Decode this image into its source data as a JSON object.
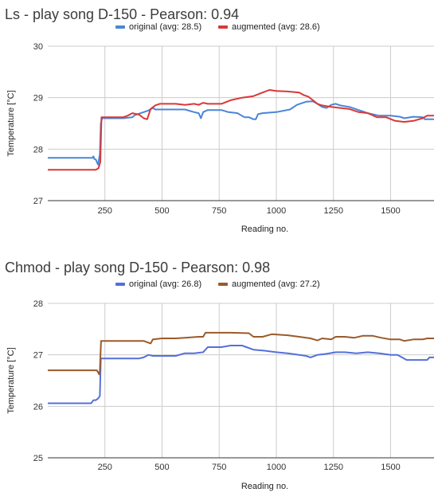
{
  "chart_data": [
    {
      "type": "line",
      "title": "Ls - play song D-150 - Pearson: 0.94",
      "xlabel": "Reading no.",
      "ylabel": "Temperature [°C]",
      "xlim": [
        0,
        1690
      ],
      "ylim": [
        27,
        30
      ],
      "xticks": [
        250,
        500,
        750,
        1000,
        1250,
        1500
      ],
      "yticks": [
        27,
        28,
        29,
        30
      ],
      "grid": true,
      "legend_position": "top",
      "series": [
        {
          "name": "original (avg: 28.5)",
          "color": "#4a86d6",
          "points": [
            [
              0,
              27.83
            ],
            [
              195,
              27.83
            ],
            [
              200,
              27.86
            ],
            [
              203,
              27.81
            ],
            [
              210,
              27.8
            ],
            [
              220,
              27.7
            ],
            [
              228,
              27.9
            ],
            [
              232,
              28.5
            ],
            [
              238,
              28.6
            ],
            [
              330,
              28.6
            ],
            [
              370,
              28.62
            ],
            [
              380,
              28.66
            ],
            [
              420,
              28.72
            ],
            [
              440,
              28.75
            ],
            [
              460,
              28.8
            ],
            [
              470,
              28.77
            ],
            [
              600,
              28.77
            ],
            [
              640,
              28.72
            ],
            [
              660,
              28.7
            ],
            [
              670,
              28.6
            ],
            [
              680,
              28.72
            ],
            [
              700,
              28.76
            ],
            [
              760,
              28.76
            ],
            [
              790,
              28.72
            ],
            [
              830,
              28.7
            ],
            [
              860,
              28.62
            ],
            [
              880,
              28.62
            ],
            [
              900,
              28.58
            ],
            [
              910,
              28.58
            ],
            [
              920,
              28.68
            ],
            [
              940,
              28.7
            ],
            [
              1000,
              28.72
            ],
            [
              1060,
              28.77
            ],
            [
              1090,
              28.86
            ],
            [
              1130,
              28.92
            ],
            [
              1160,
              28.93
            ],
            [
              1180,
              28.88
            ],
            [
              1200,
              28.82
            ],
            [
              1220,
              28.8
            ],
            [
              1240,
              28.86
            ],
            [
              1260,
              28.88
            ],
            [
              1280,
              28.85
            ],
            [
              1320,
              28.82
            ],
            [
              1360,
              28.76
            ],
            [
              1400,
              28.7
            ],
            [
              1450,
              28.65
            ],
            [
              1500,
              28.65
            ],
            [
              1540,
              28.63
            ],
            [
              1560,
              28.6
            ],
            [
              1600,
              28.63
            ],
            [
              1640,
              28.62
            ],
            [
              1650,
              28.58
            ],
            [
              1690,
              28.58
            ]
          ]
        },
        {
          "name": "augmented (avg: 28.6)",
          "color": "#d93838",
          "points": [
            [
              0,
              27.6
            ],
            [
              210,
              27.6
            ],
            [
              222,
              27.63
            ],
            [
              230,
              27.75
            ],
            [
              235,
              28.62
            ],
            [
              330,
              28.62
            ],
            [
              350,
              28.65
            ],
            [
              370,
              28.7
            ],
            [
              400,
              28.67
            ],
            [
              420,
              28.6
            ],
            [
              435,
              28.58
            ],
            [
              440,
              28.65
            ],
            [
              450,
              28.78
            ],
            [
              470,
              28.85
            ],
            [
              490,
              28.88
            ],
            [
              560,
              28.88
            ],
            [
              600,
              28.86
            ],
            [
              640,
              28.88
            ],
            [
              660,
              28.86
            ],
            [
              680,
              28.9
            ],
            [
              700,
              28.88
            ],
            [
              760,
              28.88
            ],
            [
              800,
              28.95
            ],
            [
              850,
              29.0
            ],
            [
              900,
              29.03
            ],
            [
              940,
              29.1
            ],
            [
              970,
              29.15
            ],
            [
              1000,
              29.13
            ],
            [
              1050,
              29.12
            ],
            [
              1100,
              29.1
            ],
            [
              1120,
              29.05
            ],
            [
              1140,
              29.02
            ],
            [
              1160,
              28.95
            ],
            [
              1180,
              28.88
            ],
            [
              1200,
              28.85
            ],
            [
              1240,
              28.82
            ],
            [
              1280,
              28.8
            ],
            [
              1320,
              28.78
            ],
            [
              1360,
              28.72
            ],
            [
              1400,
              28.7
            ],
            [
              1440,
              28.62
            ],
            [
              1480,
              28.62
            ],
            [
              1520,
              28.55
            ],
            [
              1560,
              28.53
            ],
            [
              1600,
              28.55
            ],
            [
              1640,
              28.6
            ],
            [
              1660,
              28.65
            ],
            [
              1690,
              28.65
            ]
          ]
        }
      ]
    },
    {
      "type": "line",
      "title": "Chmod - play song D-150 - Pearson: 0.98",
      "xlabel": "Reading no.",
      "ylabel": "Temperature [°C]",
      "xlim": [
        0,
        1690
      ],
      "ylim": [
        25,
        28
      ],
      "xticks": [
        250,
        500,
        750,
        1000,
        1250,
        1500
      ],
      "yticks": [
        25,
        26,
        27,
        28
      ],
      "grid": true,
      "legend_position": "top",
      "series": [
        {
          "name": "original (avg: 26.8)",
          "color": "#5470d8",
          "points": [
            [
              0,
              26.06
            ],
            [
              190,
              26.06
            ],
            [
              200,
              26.12
            ],
            [
              210,
              26.12
            ],
            [
              220,
              26.15
            ],
            [
              228,
              26.2
            ],
            [
              232,
              26.93
            ],
            [
              400,
              26.93
            ],
            [
              420,
              26.95
            ],
            [
              440,
              27.0
            ],
            [
              460,
              26.98
            ],
            [
              500,
              26.98
            ],
            [
              560,
              26.98
            ],
            [
              600,
              27.03
            ],
            [
              640,
              27.03
            ],
            [
              680,
              27.05
            ],
            [
              700,
              27.15
            ],
            [
              760,
              27.15
            ],
            [
              800,
              27.18
            ],
            [
              850,
              27.18
            ],
            [
              900,
              27.1
            ],
            [
              950,
              27.08
            ],
            [
              1000,
              27.05
            ],
            [
              1050,
              27.03
            ],
            [
              1100,
              27.0
            ],
            [
              1130,
              26.98
            ],
            [
              1150,
              26.95
            ],
            [
              1180,
              27.0
            ],
            [
              1220,
              27.02
            ],
            [
              1260,
              27.05
            ],
            [
              1300,
              27.05
            ],
            [
              1350,
              27.03
            ],
            [
              1400,
              27.05
            ],
            [
              1450,
              27.03
            ],
            [
              1500,
              27.0
            ],
            [
              1530,
              27.0
            ],
            [
              1550,
              26.95
            ],
            [
              1570,
              26.9
            ],
            [
              1660,
              26.9
            ],
            [
              1670,
              26.95
            ],
            [
              1690,
              26.95
            ]
          ]
        },
        {
          "name": "augmented (avg: 27.2)",
          "color": "#9b5a2a",
          "points": [
            [
              0,
              26.7
            ],
            [
              215,
              26.7
            ],
            [
              225,
              26.62
            ],
            [
              228,
              26.7
            ],
            [
              233,
              27.27
            ],
            [
              420,
              27.27
            ],
            [
              450,
              27.22
            ],
            [
              460,
              27.3
            ],
            [
              500,
              27.32
            ],
            [
              560,
              27.32
            ],
            [
              600,
              27.33
            ],
            [
              660,
              27.35
            ],
            [
              680,
              27.35
            ],
            [
              690,
              27.43
            ],
            [
              800,
              27.43
            ],
            [
              880,
              27.42
            ],
            [
              900,
              27.35
            ],
            [
              940,
              27.35
            ],
            [
              980,
              27.4
            ],
            [
              1050,
              27.38
            ],
            [
              1100,
              27.35
            ],
            [
              1150,
              27.32
            ],
            [
              1180,
              27.28
            ],
            [
              1200,
              27.32
            ],
            [
              1240,
              27.3
            ],
            [
              1260,
              27.35
            ],
            [
              1300,
              27.35
            ],
            [
              1340,
              27.33
            ],
            [
              1380,
              27.37
            ],
            [
              1420,
              27.37
            ],
            [
              1460,
              27.33
            ],
            [
              1500,
              27.3
            ],
            [
              1540,
              27.3
            ],
            [
              1560,
              27.27
            ],
            [
              1600,
              27.3
            ],
            [
              1640,
              27.3
            ],
            [
              1660,
              27.32
            ],
            [
              1690,
              27.32
            ]
          ]
        }
      ]
    }
  ]
}
